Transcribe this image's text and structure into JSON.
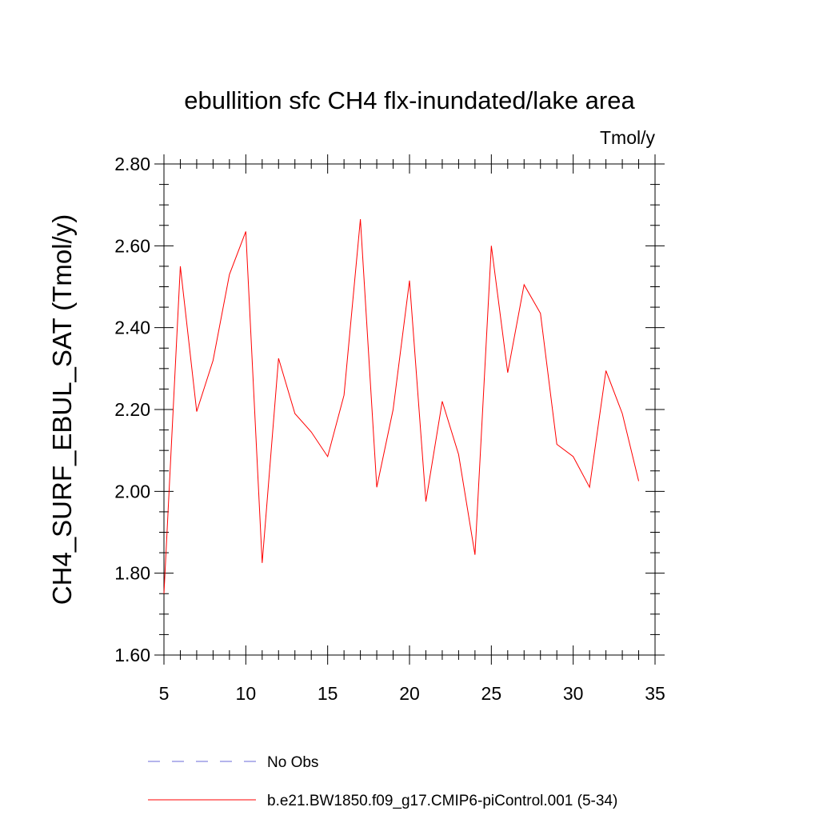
{
  "chart_data": {
    "type": "line",
    "title": "ebullition sfc CH4 flx-inundated/lake area",
    "units": "Tmol/y",
    "ylabel": "CH4_SURF_EBUL_SAT  (Tmol/y)",
    "xlabel": "",
    "xlim": [
      5,
      35
    ],
    "ylim": [
      1.6,
      2.8
    ],
    "x_ticks": [
      5,
      10,
      15,
      20,
      25,
      30,
      35
    ],
    "x_tick_labels": [
      "5",
      "10",
      "15",
      "20",
      "25",
      "30",
      "35"
    ],
    "y_ticks": [
      1.6,
      1.8,
      2.0,
      2.2,
      2.4,
      2.6,
      2.8
    ],
    "y_tick_labels": [
      "1.60",
      "1.80",
      "2.00",
      "2.20",
      "2.40",
      "2.60",
      "2.80"
    ],
    "grid": false,
    "legend_position": "bottom",
    "series": [
      {
        "name": "b.e21.BW1850.f09_g17.CMIP6-piControl.001 (5-34)",
        "color": "#ff0000",
        "style": "solid",
        "x": [
          5,
          6,
          7,
          8,
          9,
          10,
          11,
          12,
          13,
          14,
          15,
          16,
          17,
          18,
          19,
          20,
          21,
          22,
          23,
          24,
          25,
          26,
          27,
          28,
          29,
          30,
          31,
          32,
          33,
          34
        ],
        "values": [
          1.75,
          2.55,
          2.195,
          2.32,
          2.53,
          2.635,
          1.825,
          2.325,
          2.19,
          2.145,
          2.085,
          2.235,
          2.665,
          2.01,
          2.2,
          2.515,
          1.975,
          2.22,
          2.09,
          1.845,
          2.6,
          2.29,
          2.505,
          2.435,
          2.115,
          2.085,
          2.01,
          2.295,
          2.19,
          2.025
        ]
      }
    ],
    "legend": [
      {
        "label": "No Obs",
        "color": "#6a6ad8",
        "style": "dashed"
      },
      {
        "label": "b.e21.BW1850.f09_g17.CMIP6-piControl.001 (5-34)",
        "color": "#ff0000",
        "style": "solid"
      }
    ]
  }
}
